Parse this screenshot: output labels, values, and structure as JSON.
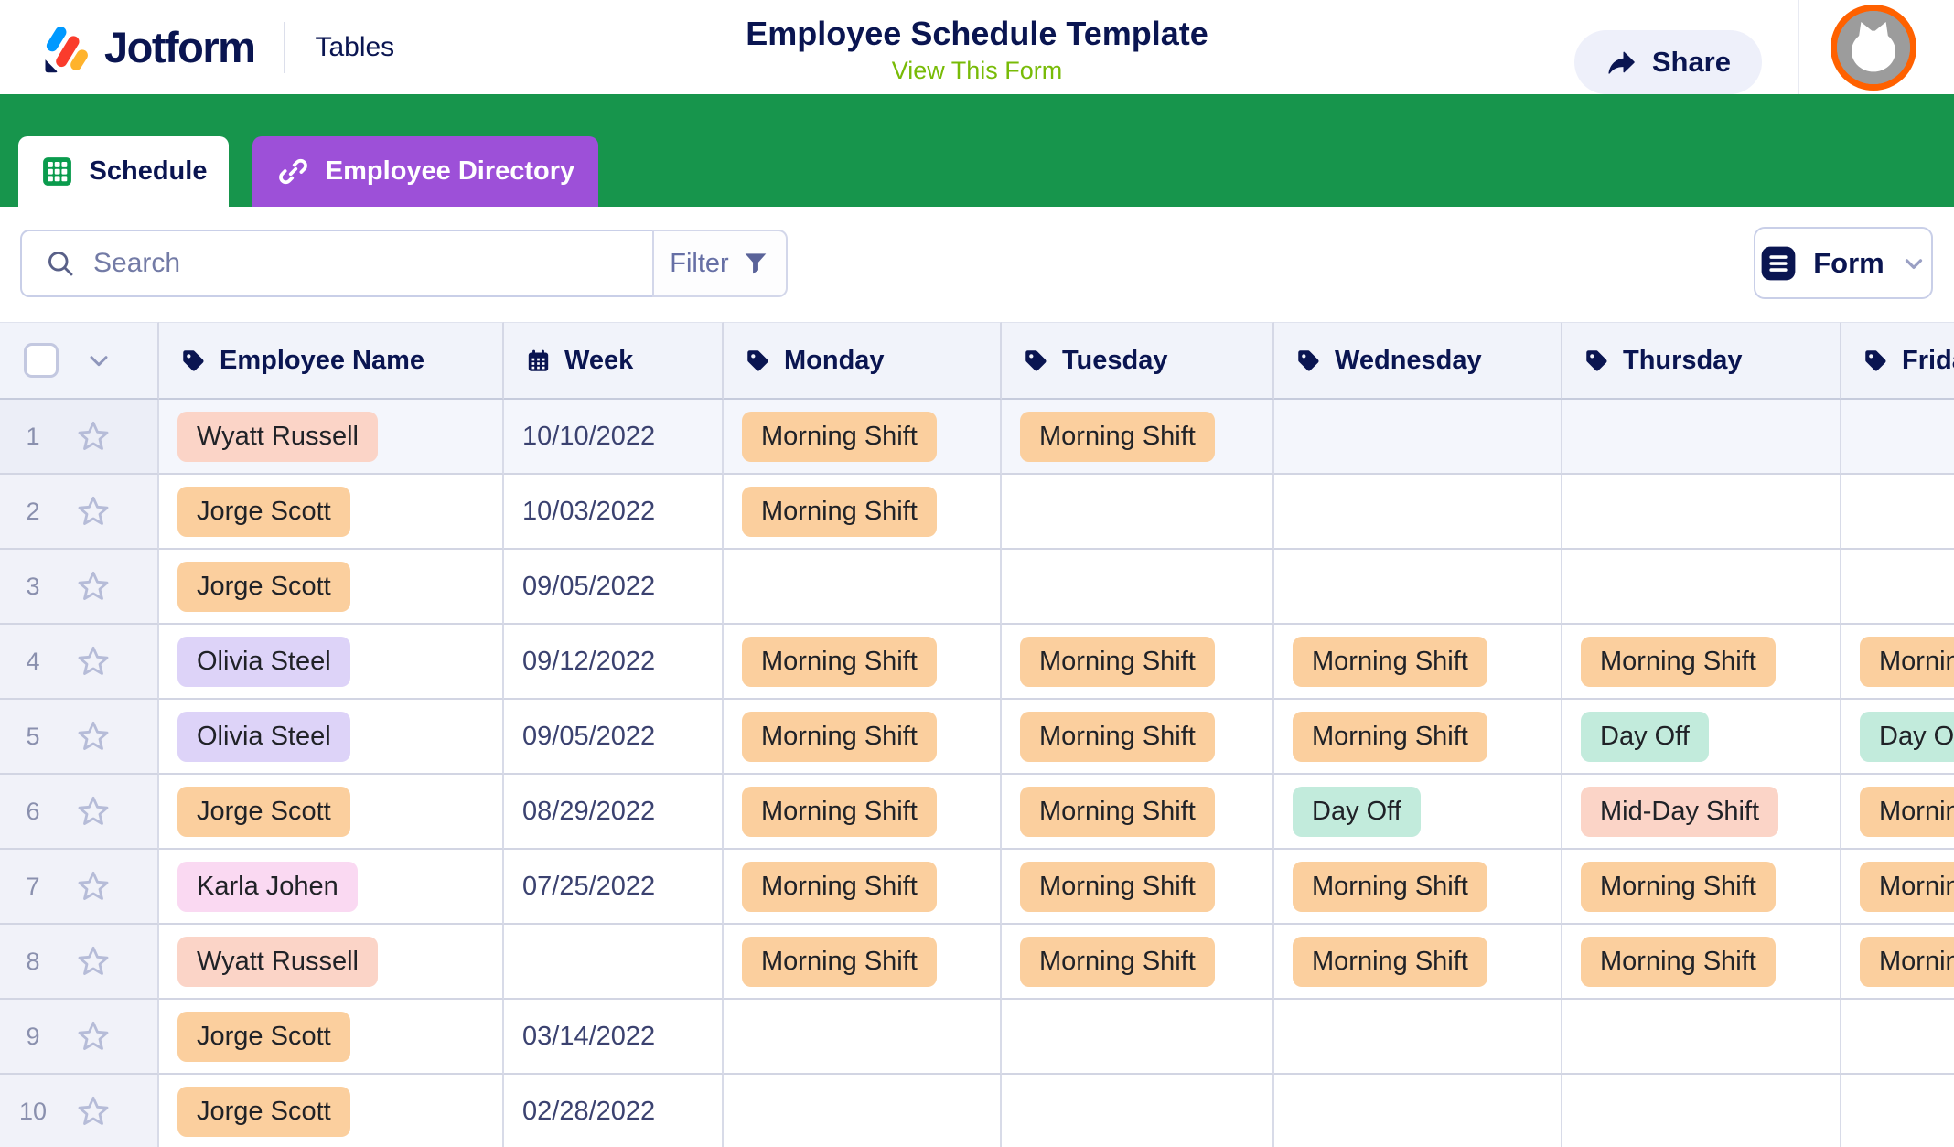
{
  "header": {
    "logo_text": "Jotform",
    "product": "Tables",
    "title": "Employee Schedule Template",
    "subtitle_link": "View This Form",
    "share_label": "Share"
  },
  "tabs": [
    {
      "label": "Schedule",
      "active": true
    },
    {
      "label": "Employee Directory",
      "active": false
    }
  ],
  "toolbar": {
    "search_placeholder": "Search",
    "filter_label": "Filter",
    "form_label": "Form"
  },
  "colors": {
    "green_bar": "#17954C",
    "purple_tab": "#9D50D8",
    "navy": "#0A1551",
    "link_green": "#78BB07",
    "avatar_ring": "#FF6100",
    "badges": {
      "peach": "#FBCF9E",
      "salmon": "#FBD4C7",
      "lavender": "#DDD3F8",
      "pink": "#FAD9F2",
      "mint": "#C2EBDC"
    }
  },
  "table": {
    "columns": [
      {
        "label": "Employee Name",
        "icon": "tag"
      },
      {
        "label": "Week",
        "icon": "calendar"
      },
      {
        "label": "Monday",
        "icon": "tag"
      },
      {
        "label": "Tuesday",
        "icon": "tag"
      },
      {
        "label": "Wednesday",
        "icon": "tag"
      },
      {
        "label": "Thursday",
        "icon": "tag"
      },
      {
        "label": "Friday",
        "icon": "tag"
      }
    ],
    "rows": [
      {
        "num": "1",
        "name": "Wyatt Russell",
        "name_color": "salmon",
        "week": "10/10/2022",
        "highlight": true,
        "days": [
          {
            "label": "Morning Shift",
            "color": "peach"
          },
          {
            "label": "Morning Shift",
            "color": "peach"
          },
          null,
          null,
          null
        ]
      },
      {
        "num": "2",
        "name": "Jorge Scott",
        "name_color": "peach",
        "week": "10/03/2022",
        "highlight": false,
        "days": [
          {
            "label": "Morning Shift",
            "color": "peach"
          },
          null,
          null,
          null,
          null
        ]
      },
      {
        "num": "3",
        "name": "Jorge Scott",
        "name_color": "peach",
        "week": "09/05/2022",
        "highlight": false,
        "days": [
          null,
          null,
          null,
          null,
          null
        ]
      },
      {
        "num": "4",
        "name": "Olivia Steel",
        "name_color": "lavender",
        "week": "09/12/2022",
        "highlight": false,
        "days": [
          {
            "label": "Morning Shift",
            "color": "peach"
          },
          {
            "label": "Morning Shift",
            "color": "peach"
          },
          {
            "label": "Morning Shift",
            "color": "peach"
          },
          {
            "label": "Morning Shift",
            "color": "peach"
          },
          {
            "label": "Morning Shift",
            "color": "peach"
          }
        ]
      },
      {
        "num": "5",
        "name": "Olivia Steel",
        "name_color": "lavender",
        "week": "09/05/2022",
        "highlight": false,
        "days": [
          {
            "label": "Morning Shift",
            "color": "peach"
          },
          {
            "label": "Morning Shift",
            "color": "peach"
          },
          {
            "label": "Morning Shift",
            "color": "peach"
          },
          {
            "label": "Day Off",
            "color": "mint"
          },
          {
            "label": "Day Off",
            "color": "mint"
          }
        ]
      },
      {
        "num": "6",
        "name": "Jorge Scott",
        "name_color": "peach",
        "week": "08/29/2022",
        "highlight": false,
        "days": [
          {
            "label": "Morning Shift",
            "color": "peach"
          },
          {
            "label": "Morning Shift",
            "color": "peach"
          },
          {
            "label": "Day Off",
            "color": "mint"
          },
          {
            "label": "Mid-Day Shift",
            "color": "salmon"
          },
          {
            "label": "Morning Shift",
            "color": "peach"
          }
        ]
      },
      {
        "num": "7",
        "name": "Karla Johen",
        "name_color": "pink",
        "week": "07/25/2022",
        "highlight": false,
        "days": [
          {
            "label": "Morning Shift",
            "color": "peach"
          },
          {
            "label": "Morning Shift",
            "color": "peach"
          },
          {
            "label": "Morning Shift",
            "color": "peach"
          },
          {
            "label": "Morning Shift",
            "color": "peach"
          },
          {
            "label": "Morning Shift",
            "color": "peach"
          }
        ]
      },
      {
        "num": "8",
        "name": "Wyatt Russell",
        "name_color": "salmon",
        "week": "",
        "highlight": false,
        "days": [
          {
            "label": "Morning Shift",
            "color": "peach"
          },
          {
            "label": "Morning Shift",
            "color": "peach"
          },
          {
            "label": "Morning Shift",
            "color": "peach"
          },
          {
            "label": "Morning Shift",
            "color": "peach"
          },
          {
            "label": "Morning Shift",
            "color": "peach"
          }
        ]
      },
      {
        "num": "9",
        "name": "Jorge Scott",
        "name_color": "peach",
        "week": "03/14/2022",
        "highlight": false,
        "days": [
          null,
          null,
          null,
          null,
          null
        ]
      },
      {
        "num": "10",
        "name": "Jorge Scott",
        "name_color": "peach",
        "week": "02/28/2022",
        "highlight": false,
        "days": [
          null,
          null,
          null,
          null,
          null
        ]
      }
    ]
  }
}
